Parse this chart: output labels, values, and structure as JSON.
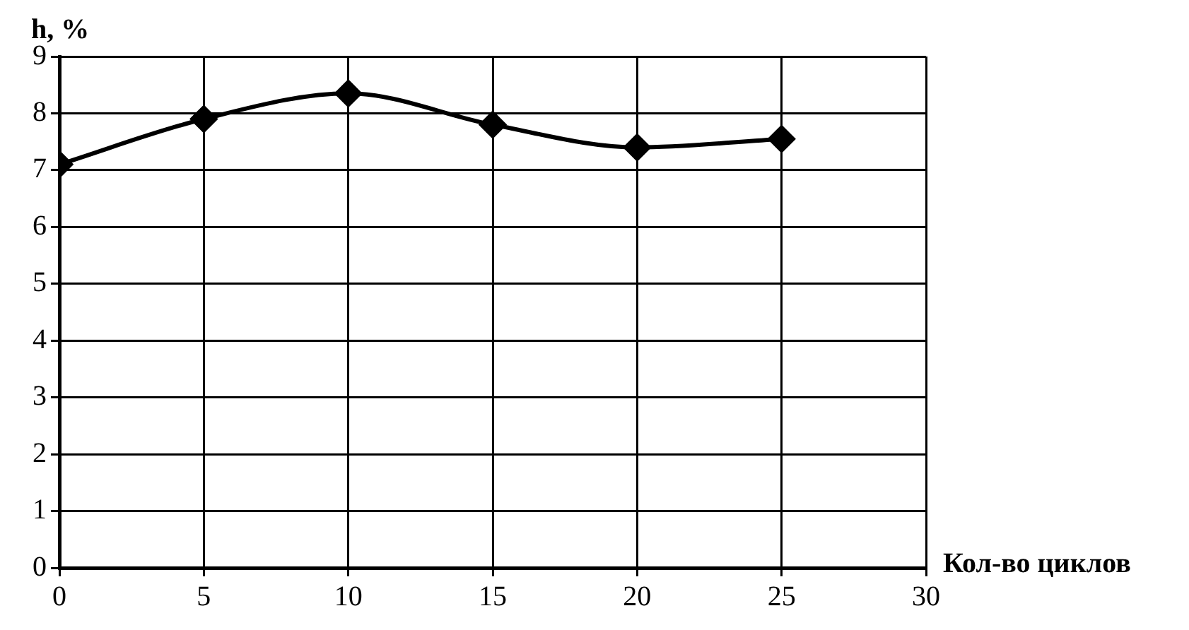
{
  "chart_data": {
    "type": "line",
    "xlabel": "Кол-во циклов",
    "ylabel": "h, %",
    "x": [
      0,
      5,
      10,
      15,
      20,
      25
    ],
    "series": [
      {
        "color": "#000000",
        "values": [
          7.1,
          7.9,
          8.35,
          7.8,
          7.4,
          7.55
        ]
      }
    ],
    "xlim": [
      0,
      30
    ],
    "xticks": [
      0,
      5,
      10,
      15,
      20,
      25,
      30
    ],
    "ylim": [
      0,
      9
    ],
    "yticks": [
      0,
      1,
      2,
      3,
      4,
      5,
      6,
      7,
      8,
      9
    ],
    "grid": true,
    "legend": false,
    "marker": "diamond",
    "line_style": "solid"
  }
}
